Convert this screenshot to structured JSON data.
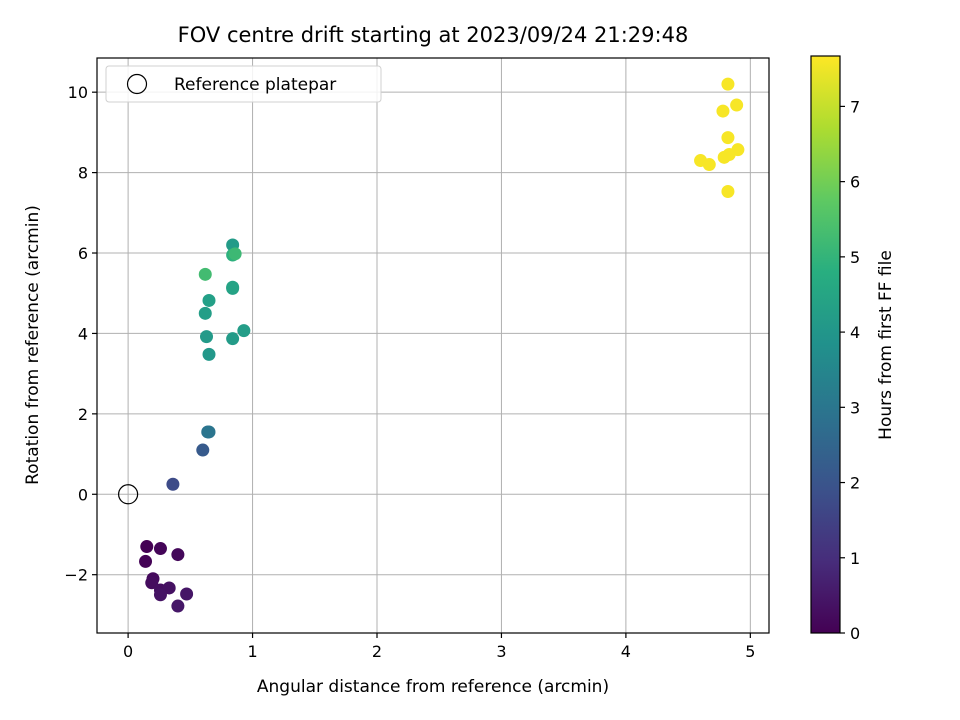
{
  "chart_data": {
    "type": "scatter",
    "title": "FOV centre drift starting at 2023/09/24 21:29:48",
    "xlabel": "Angular distance from reference (arcmin)",
    "ylabel": "Rotation from reference (arcmin)",
    "xlim": [
      -0.25,
      5.15
    ],
    "ylim": [
      -3.45,
      10.85
    ],
    "xticks": [
      0,
      1,
      2,
      3,
      4,
      5
    ],
    "yticks": [
      -2,
      0,
      2,
      4,
      6,
      8,
      10
    ],
    "xtick_labels": [
      "0",
      "1",
      "2",
      "3",
      "4",
      "5"
    ],
    "ytick_labels": [
      "−2",
      "0",
      "2",
      "4",
      "6",
      "8",
      "10"
    ],
    "grid": true,
    "colormap": "viridis",
    "colorbar": {
      "label": "Hours from first FF file",
      "min": 0,
      "max": 7.67,
      "ticks": [
        0,
        1,
        2,
        3,
        4,
        5,
        6,
        7
      ],
      "tick_labels": [
        "0",
        "1",
        "2",
        "3",
        "4",
        "5",
        "6",
        "7"
      ]
    },
    "reference": {
      "x": 0,
      "y": 0,
      "label": "Reference platepar"
    },
    "legend": {
      "placement": "top-left",
      "entries": [
        "Reference platepar"
      ]
    },
    "points": [
      {
        "x": 0.15,
        "y": -1.3,
        "c": 0.0
      },
      {
        "x": 0.14,
        "y": -1.67,
        "c": 0.05
      },
      {
        "x": 0.26,
        "y": -1.35,
        "c": 0.1
      },
      {
        "x": 0.4,
        "y": -1.5,
        "c": 0.15
      },
      {
        "x": 0.2,
        "y": -2.1,
        "c": 0.2
      },
      {
        "x": 0.19,
        "y": -2.2,
        "c": 0.25
      },
      {
        "x": 0.26,
        "y": -2.38,
        "c": 0.3
      },
      {
        "x": 0.33,
        "y": -2.33,
        "c": 0.35
      },
      {
        "x": 0.26,
        "y": -2.5,
        "c": 0.4
      },
      {
        "x": 0.47,
        "y": -2.48,
        "c": 0.45
      },
      {
        "x": 0.4,
        "y": -2.78,
        "c": 0.5
      },
      {
        "x": 0.36,
        "y": 0.25,
        "c": 1.75
      },
      {
        "x": 0.6,
        "y": 1.1,
        "c": 2.2
      },
      {
        "x": 0.64,
        "y": 1.55,
        "c": 2.9
      },
      {
        "x": 0.65,
        "y": 1.55,
        "c": 3.0
      },
      {
        "x": 0.65,
        "y": 3.48,
        "c": 4.1
      },
      {
        "x": 0.63,
        "y": 3.92,
        "c": 4.15
      },
      {
        "x": 0.84,
        "y": 3.87,
        "c": 4.2
      },
      {
        "x": 0.93,
        "y": 4.07,
        "c": 4.25
      },
      {
        "x": 0.62,
        "y": 4.5,
        "c": 4.3
      },
      {
        "x": 0.65,
        "y": 4.82,
        "c": 4.35
      },
      {
        "x": 0.84,
        "y": 5.12,
        "c": 4.4
      },
      {
        "x": 0.84,
        "y": 5.15,
        "c": 4.45
      },
      {
        "x": 0.84,
        "y": 6.2,
        "c": 4.2
      },
      {
        "x": 0.84,
        "y": 5.95,
        "c": 4.9
      },
      {
        "x": 0.86,
        "y": 5.98,
        "c": 5.2
      },
      {
        "x": 0.62,
        "y": 5.47,
        "c": 5.3
      },
      {
        "x": 4.82,
        "y": 10.2,
        "c": 7.6
      },
      {
        "x": 4.89,
        "y": 9.68,
        "c": 7.6
      },
      {
        "x": 4.78,
        "y": 9.53,
        "c": 7.6
      },
      {
        "x": 4.82,
        "y": 8.87,
        "c": 7.6
      },
      {
        "x": 4.9,
        "y": 8.57,
        "c": 7.6
      },
      {
        "x": 4.83,
        "y": 8.45,
        "c": 7.6
      },
      {
        "x": 4.79,
        "y": 8.38,
        "c": 7.6
      },
      {
        "x": 4.6,
        "y": 8.3,
        "c": 7.6
      },
      {
        "x": 4.67,
        "y": 8.2,
        "c": 7.6
      },
      {
        "x": 4.82,
        "y": 7.53,
        "c": 7.6
      }
    ]
  }
}
